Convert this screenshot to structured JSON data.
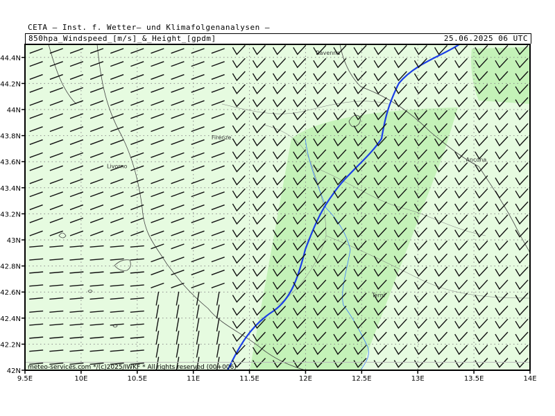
{
  "header": {
    "title": "CETA — Inst. f. Wetter— und Klimafolgenanalysen —",
    "subtitle": "850hpa_Windspeed_[m/s]_&_Height_[gpdm]",
    "datetime": "25.06.2025 06 UTC"
  },
  "map": {
    "lon_range": [
      9.5,
      14.0
    ],
    "lat_range": [
      42.0,
      44.5
    ],
    "x_ticks": [
      "9.5E",
      "10E",
      "10.5E",
      "11E",
      "11.5E",
      "12E",
      "12.5E",
      "13E",
      "13.5E",
      "14E"
    ],
    "y_ticks": [
      "44.4N",
      "44.2N",
      "44N",
      "43.8N",
      "43.6N",
      "43.4N",
      "43.2N",
      "43N",
      "42.8N",
      "42.6N",
      "42.4N",
      "42.2N",
      "42N"
    ],
    "cities": [
      {
        "name": "Ravenna",
        "lon": 12.2,
        "lat": 44.42
      },
      {
        "name": "Firenze",
        "lon": 11.25,
        "lat": 43.77
      },
      {
        "name": "Livorno",
        "lon": 10.32,
        "lat": 43.55
      },
      {
        "name": "Ancona",
        "lon": 13.52,
        "lat": 43.6
      },
      {
        "name": "Terni",
        "lon": 12.65,
        "lat": 42.56
      }
    ],
    "colors": {
      "background": "#e6fbe0",
      "band": "#c4f2b8",
      "contour": "#1a3ee6",
      "coast": "#444444",
      "river": "#3a7bff",
      "grid": "#8a8a8a"
    }
  },
  "footer": {
    "credit": "meteo-services.com */(c)2025/IWKF * All rights reserved (00+006)"
  }
}
